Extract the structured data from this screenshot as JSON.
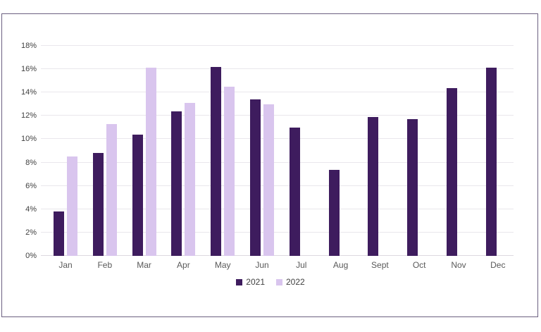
{
  "chart_data": {
    "type": "bar",
    "title": "",
    "xlabel": "",
    "ylabel": "",
    "categories": [
      "Jan",
      "Feb",
      "Mar",
      "Apr",
      "May",
      "Jun",
      "Jul",
      "Aug",
      "Sept",
      "Oct",
      "Nov",
      "Dec"
    ],
    "series": [
      {
        "name": "2021",
        "color": "#3e1c5e",
        "values": [
          3.8,
          8.8,
          10.4,
          12.4,
          16.2,
          13.4,
          11.0,
          7.4,
          11.9,
          11.7,
          14.4,
          16.1
        ]
      },
      {
        "name": "2022",
        "color": "#d9c5ee",
        "values": [
          8.5,
          11.3,
          16.1,
          13.1,
          14.5,
          13.0,
          null,
          null,
          null,
          null,
          null,
          null
        ]
      }
    ],
    "ylim": [
      0,
      18
    ],
    "ytick_step": 2,
    "ytick_suffix": "%",
    "grid": true,
    "legend_position": "bottom"
  },
  "style": {
    "background": "#ffffff",
    "frame_border_color": "#6b6080",
    "gridline_color": "#e9e7ec",
    "baseline_color": "#ddd8e0",
    "ytick_color": "#404040",
    "xtick_color": "#595959",
    "legend_text_color": "#404040"
  }
}
